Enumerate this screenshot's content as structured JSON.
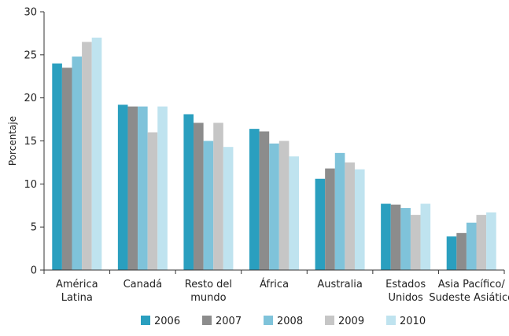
{
  "chart_data": {
    "type": "bar",
    "title": "",
    "xlabel": "",
    "ylabel": "Porcentaje",
    "ylim": [
      0,
      30
    ],
    "yticks": [
      0,
      5,
      10,
      15,
      20,
      25,
      30
    ],
    "grid": false,
    "legend_position": "bottom",
    "categories": [
      [
        "América",
        "Latina"
      ],
      [
        "Canadá"
      ],
      [
        "Resto del",
        "mundo"
      ],
      [
        "África"
      ],
      [
        "Australia"
      ],
      [
        "Estados",
        "Unidos"
      ],
      [
        "Asia Pacífico/",
        "Sudeste Asiático"
      ]
    ],
    "series": [
      {
        "name": "2006",
        "color": "#2a9fbf",
        "values": [
          24.0,
          19.2,
          18.1,
          16.4,
          10.6,
          7.7,
          3.9
        ]
      },
      {
        "name": "2007",
        "color": "#8c8c8c",
        "values": [
          23.5,
          19.0,
          17.1,
          16.1,
          11.8,
          7.6,
          4.3
        ]
      },
      {
        "name": "2008",
        "color": "#7fc3da",
        "values": [
          24.8,
          19.0,
          15.0,
          14.7,
          13.6,
          7.2,
          5.5
        ]
      },
      {
        "name": "2009",
        "color": "#c6c6c6",
        "values": [
          26.5,
          16.0,
          17.1,
          15.0,
          12.5,
          6.4,
          6.4
        ]
      },
      {
        "name": "2010",
        "color": "#bfe3ef",
        "values": [
          27.0,
          19.0,
          14.3,
          13.2,
          11.7,
          7.7,
          6.7
        ]
      }
    ]
  }
}
